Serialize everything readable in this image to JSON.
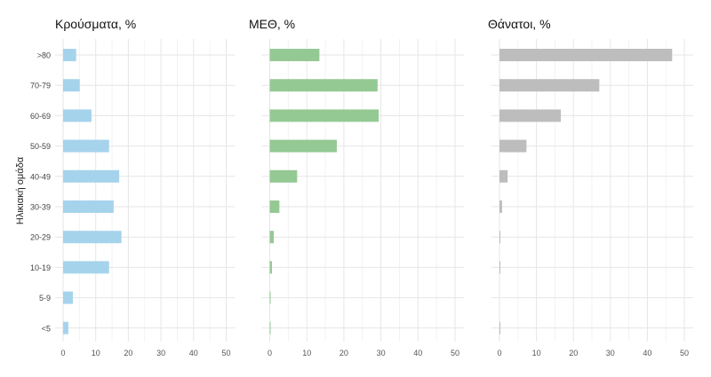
{
  "chart_data": [
    {
      "type": "bar",
      "orientation": "horizontal",
      "title": "Κρούσματα, %",
      "ylabel": "Ηλικιακή ομάδα",
      "categories": [
        ">80",
        "70-79",
        "60-69",
        "50-59",
        "40-49",
        "30-39",
        "20-29",
        "10-19",
        "5-9",
        "<5"
      ],
      "values": [
        4.0,
        5.1,
        8.7,
        14.1,
        17.2,
        15.5,
        17.9,
        14.1,
        3.0,
        1.6
      ],
      "xlim": [
        0,
        50
      ],
      "xticks": [
        "0",
        "10",
        "20",
        "30",
        "40",
        "50"
      ],
      "color": "#a6d3ec",
      "grid": true
    },
    {
      "type": "bar",
      "orientation": "horizontal",
      "title": "ΜΕΘ, %",
      "categories": [
        ">80",
        "70-79",
        "60-69",
        "50-59",
        "40-49",
        "30-39",
        "20-29",
        "10-19",
        "5-9",
        "<5"
      ],
      "values": [
        13.4,
        29.1,
        29.4,
        18.1,
        7.4,
        2.6,
        1.1,
        0.6,
        0.2,
        0.2
      ],
      "xlim": [
        0,
        50
      ],
      "xticks": [
        "0",
        "10",
        "20",
        "30",
        "40",
        "50"
      ],
      "color": "#95c994",
      "grid": true
    },
    {
      "type": "bar",
      "orientation": "horizontal",
      "title": "Θάνατοι, %",
      "categories": [
        ">80",
        "70-79",
        "60-69",
        "50-59",
        "40-49",
        "30-39",
        "20-29",
        "10-19",
        "5-9",
        "<5"
      ],
      "values": [
        46.7,
        27.0,
        16.6,
        7.3,
        2.2,
        0.7,
        0.2,
        0.2,
        0,
        0.2
      ],
      "xlim": [
        0,
        50
      ],
      "xticks": [
        "0",
        "10",
        "20",
        "30",
        "40",
        "50"
      ],
      "color": "#bdbdbd",
      "grid": true
    }
  ]
}
